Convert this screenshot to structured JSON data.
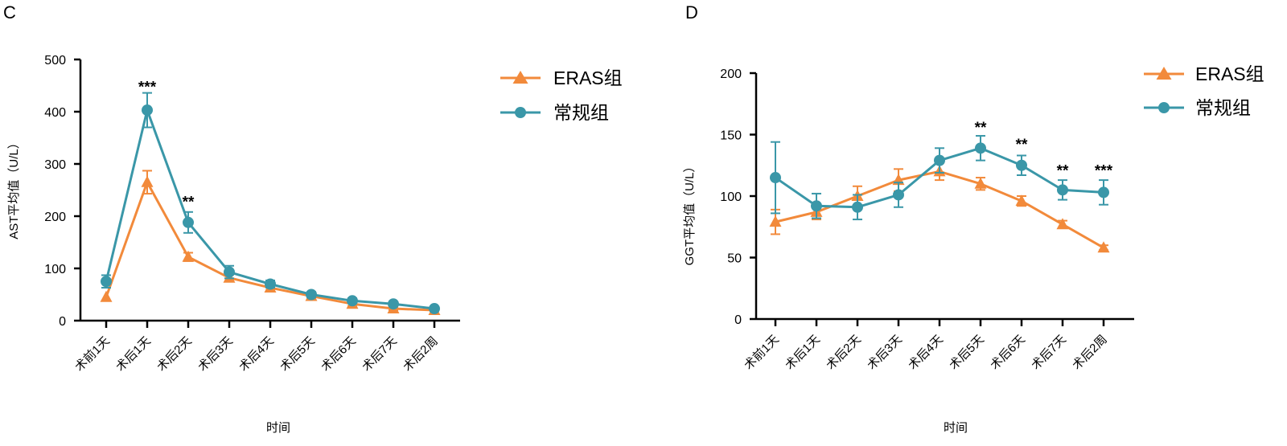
{
  "colors": {
    "eras": "#F28A3B",
    "conventional": "#3A97A8"
  },
  "chart_data": [
    {
      "panel": "C",
      "type": "line",
      "ylabel": "AST平均值（U/L）",
      "xlabel": "时间",
      "ylim": [
        0,
        500
      ],
      "yticks": [
        0,
        100,
        200,
        300,
        400,
        500
      ],
      "categories": [
        "术前1天",
        "术后1天",
        "术后2天",
        "术后3天",
        "术后4天",
        "术后5天",
        "术后6天",
        "术后7天",
        "术后2周"
      ],
      "legend_position": "top-right",
      "series": [
        {
          "key": "eras",
          "name": "ERAS组",
          "marker": "triangle",
          "values": [
            45,
            265,
            122,
            82,
            63,
            47,
            32,
            23,
            20
          ],
          "errors": [
            0,
            22,
            8,
            6,
            5,
            4,
            4,
            3,
            2
          ]
        },
        {
          "key": "conventional",
          "name": "常规组",
          "marker": "circle",
          "values": [
            75,
            403,
            188,
            93,
            70,
            50,
            38,
            32,
            23
          ],
          "errors": [
            12,
            33,
            20,
            12,
            7,
            5,
            5,
            4,
            3
          ]
        }
      ],
      "significance": [
        {
          "category_index": 1,
          "label": "***",
          "value": 450
        },
        {
          "category_index": 2,
          "label": "**",
          "value": 230
        }
      ]
    },
    {
      "panel": "D",
      "type": "line",
      "ylabel": "GGT平均值（U/L）",
      "xlabel": "时间",
      "ylim": [
        0,
        200
      ],
      "yticks": [
        0,
        50,
        100,
        150,
        200
      ],
      "categories": [
        "术前1天",
        "术后1天",
        "术后2天",
        "术后3天",
        "术后4天",
        "术后5天",
        "术后6天",
        "术后7天",
        "术后2周"
      ],
      "legend_position": "top-right",
      "series": [
        {
          "key": "eras",
          "name": "ERAS组",
          "marker": "triangle",
          "values": [
            79,
            87,
            100,
            113,
            120,
            110,
            96,
            77,
            58
          ],
          "errors": [
            10,
            6,
            8,
            9,
            7,
            5,
            4,
            3,
            2
          ]
        },
        {
          "key": "conventional",
          "name": "常规组",
          "marker": "circle",
          "values": [
            115,
            92,
            91,
            101,
            129,
            139,
            125,
            105,
            103
          ],
          "errors": [
            29,
            10,
            10,
            10,
            10,
            10,
            8,
            8,
            10
          ]
        }
      ],
      "significance": [
        {
          "category_index": 5,
          "label": "**",
          "value": 157
        },
        {
          "category_index": 6,
          "label": "**",
          "value": 143
        },
        {
          "category_index": 7,
          "label": "**",
          "value": 122
        },
        {
          "category_index": 8,
          "label": "***",
          "value": 122
        }
      ]
    }
  ]
}
